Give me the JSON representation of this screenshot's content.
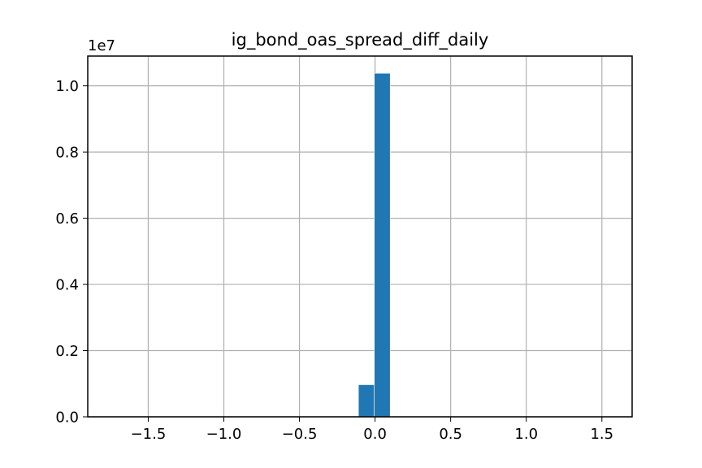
{
  "chart_data": {
    "type": "bar",
    "title": "ig_bond_oas_spread_diff_daily",
    "xlabel": "",
    "ylabel": "",
    "y_offset_label": "1e7",
    "y_scale_factor": 10000000,
    "xlim": [
      -1.9,
      1.7
    ],
    "ylim": [
      0,
      10900000
    ],
    "x_ticks": [
      -1.5,
      -1.0,
      -0.5,
      0.0,
      0.5,
      1.0,
      1.5
    ],
    "x_tick_labels": [
      "−1.5",
      "−1.0",
      "−0.5",
      "0.0",
      "0.5",
      "1.0",
      "1.5"
    ],
    "y_ticks": [
      0,
      2000000,
      4000000,
      6000000,
      8000000,
      10000000
    ],
    "y_tick_labels": [
      "0.0",
      "0.2",
      "0.4",
      "0.6",
      "0.8",
      "1.0"
    ],
    "grid": true,
    "bar_color": "#1f77b4",
    "bins": [
      {
        "x0": -0.11,
        "x1": -0.005,
        "count": 970000
      },
      {
        "x0": -0.005,
        "x1": 0.1,
        "count": 10380000
      }
    ]
  }
}
